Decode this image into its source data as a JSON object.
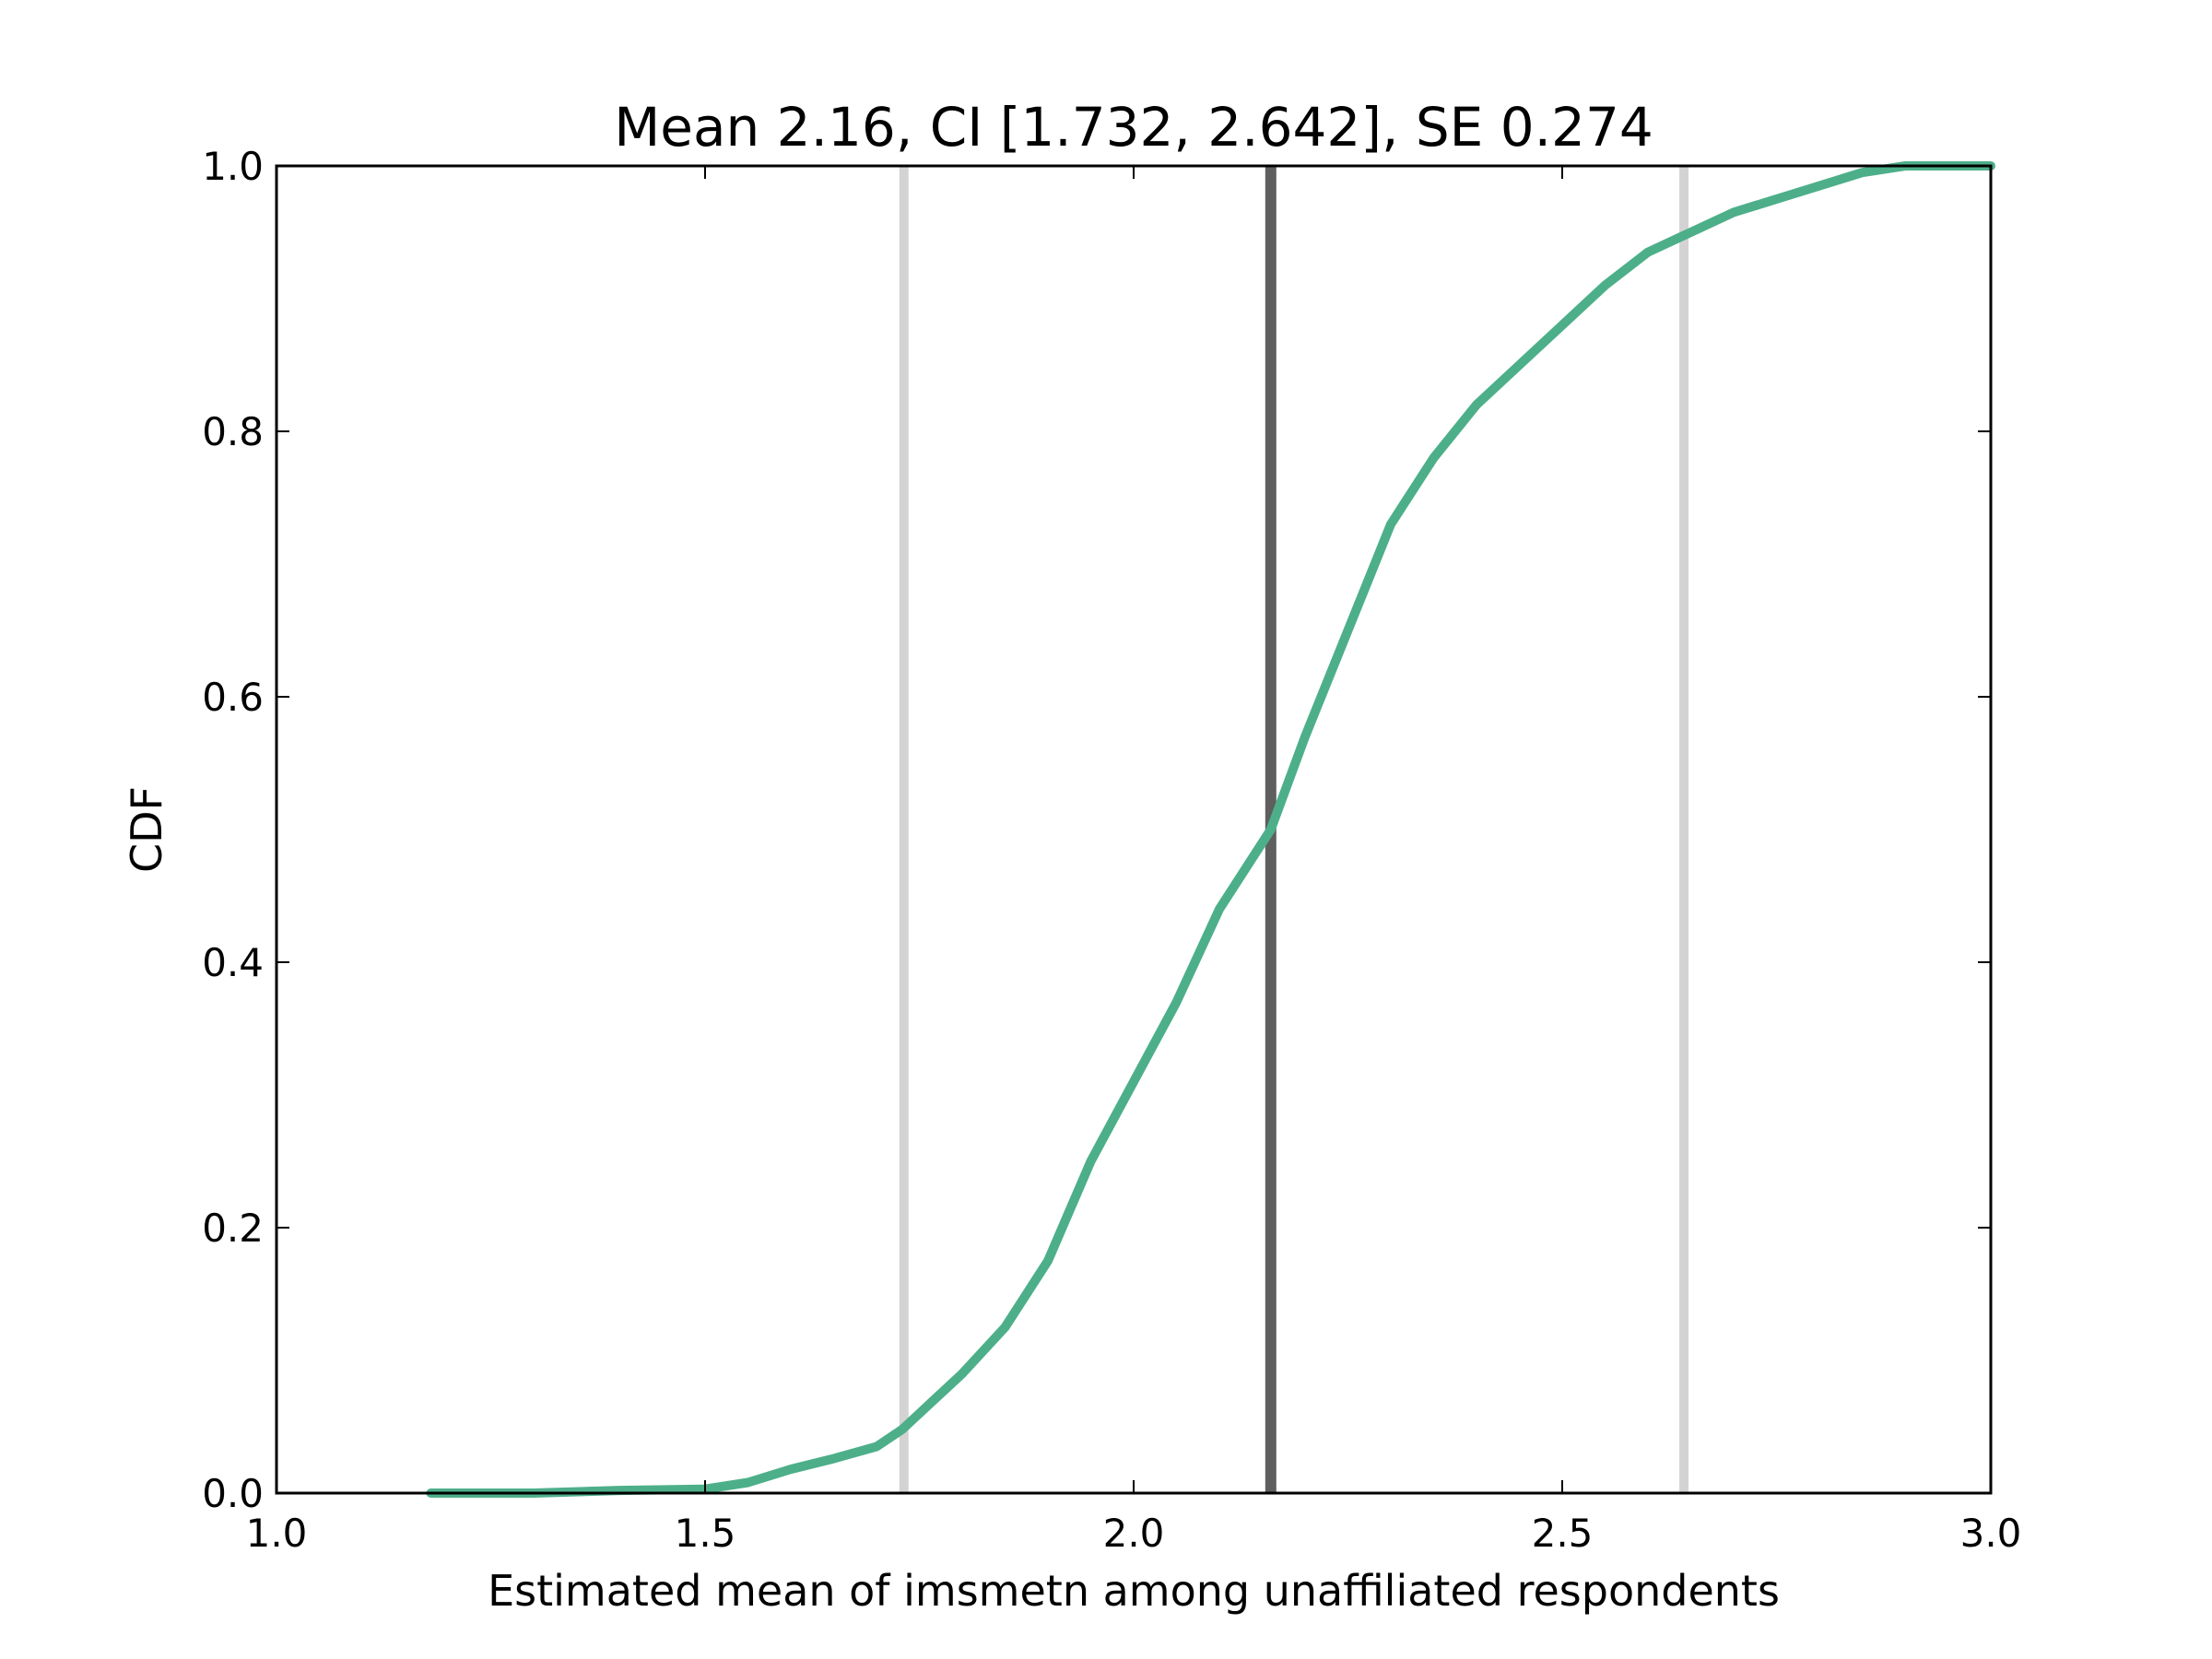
{
  "chart_data": {
    "type": "line",
    "title": "Mean 2.16, CI [1.732, 2.642], SE 0.274",
    "xlabel": "Estimated mean of imsmetn among unaffiliated respondents",
    "ylabel": "CDF",
    "xlim": [
      1.0,
      3.0
    ],
    "ylim": [
      0.0,
      1.0
    ],
    "xticks": [
      "1.0",
      "1.5",
      "2.0",
      "2.5",
      "3.0"
    ],
    "yticks": [
      "0.0",
      "0.2",
      "0.4",
      "0.6",
      "0.8",
      "1.0"
    ],
    "grid": false,
    "legend": "none",
    "series": [
      {
        "color": "#4daf8a",
        "x": [
          1.18,
          1.3,
          1.4,
          1.5,
          1.55,
          1.6,
          1.65,
          1.7,
          1.73,
          1.75,
          1.8,
          1.85,
          1.9,
          1.95,
          2.0,
          2.05,
          2.1,
          2.16,
          2.2,
          2.25,
          2.3,
          2.35,
          2.4,
          2.45,
          2.5,
          2.55,
          2.6,
          2.65,
          2.7,
          2.75,
          2.8,
          2.85,
          2.9,
          3.0
        ],
        "y": [
          0.0,
          0.0,
          0.002,
          0.003,
          0.008,
          0.018,
          0.026,
          0.035,
          0.048,
          0.06,
          0.09,
          0.125,
          0.175,
          0.25,
          0.31,
          0.37,
          0.44,
          0.5,
          0.57,
          0.65,
          0.73,
          0.78,
          0.82,
          0.85,
          0.88,
          0.91,
          0.935,
          0.95,
          0.965,
          0.975,
          0.985,
          0.995,
          1.0,
          1.0
        ]
      }
    ],
    "vlines": [
      {
        "x": 1.732,
        "color": "#d3d3d3"
      },
      {
        "x": 2.642,
        "color": "#d3d3d3"
      },
      {
        "x": 2.16,
        "color": "#5f5f5f"
      }
    ]
  }
}
